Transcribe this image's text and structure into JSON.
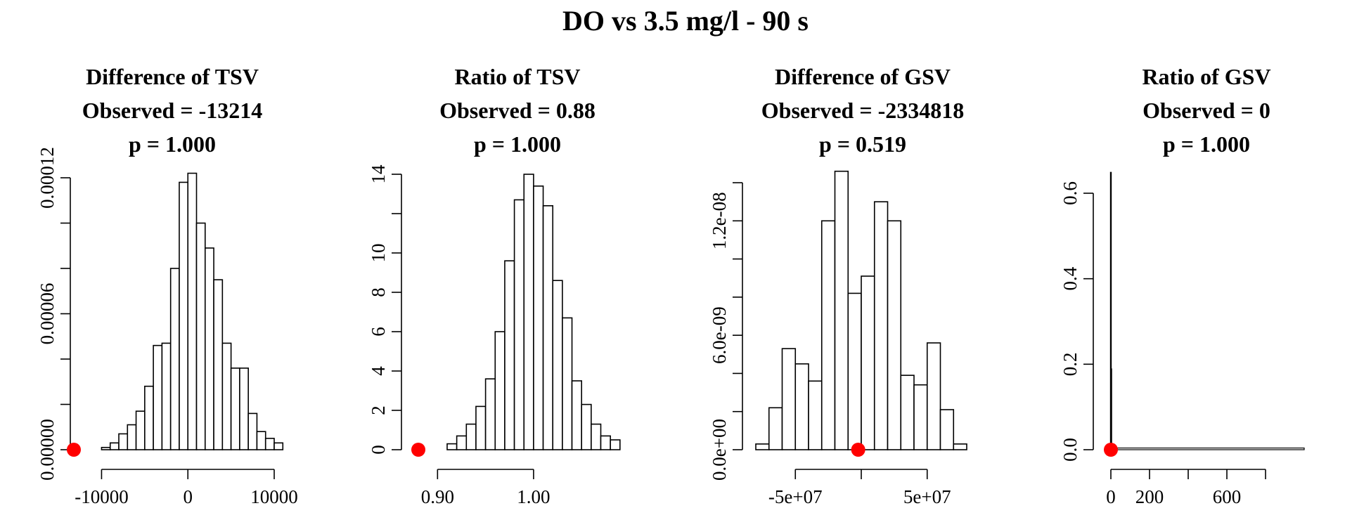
{
  "figure": {
    "title": "DO vs 3.5 mg/l - 90 s"
  },
  "colors": {
    "bar_fill": "#ffffff",
    "bar_stroke": "#000000",
    "observed_point": "#ff0000"
  },
  "chart_data": [
    {
      "type": "bar",
      "title_lines": [
        "Difference of TSV",
        "Observed = -13214",
        "p = 1.000"
      ],
      "xlabel": "",
      "ylabel": "",
      "xlim": [
        -13214,
        10000
      ],
      "ylim": [
        0,
        0.00012
      ],
      "x_ticks": [
        -10000,
        0,
        10000
      ],
      "x_tick_labels": [
        "-10000",
        "0",
        "10000"
      ],
      "y_ticks": [
        0,
        6e-05,
        0.00012
      ],
      "y_tick_labels": [
        "0.00000",
        "0.00006",
        "0.00012"
      ],
      "y_minor_ticks": [
        2e-05,
        4e-05,
        8e-05,
        0.0001
      ],
      "bins": {
        "start": -10000,
        "width": 1000,
        "heights": [
          1e-06,
          3e-06,
          7e-06,
          1.1e-05,
          1.7e-05,
          2.8e-05,
          4.6e-05,
          4.7e-05,
          8e-05,
          0.000118,
          0.000122,
          0.0001,
          8.9e-05,
          7.5e-05,
          4.7e-05,
          3.6e-05,
          3.6e-05,
          1.6e-05,
          8e-06,
          5e-06,
          3e-06
        ]
      },
      "observed": {
        "x": -13214,
        "y": 0
      }
    },
    {
      "type": "bar",
      "title_lines": [
        "Ratio of TSV",
        "Observed = 0.88",
        "p = 1.000"
      ],
      "xlabel": "",
      "ylabel": "",
      "xlim": [
        0.88,
        1.085
      ],
      "ylim": [
        0,
        14
      ],
      "x_ticks": [
        0.9,
        1.0
      ],
      "x_tick_labels": [
        "0.90",
        "1.00"
      ],
      "y_ticks": [
        0,
        2,
        4,
        6,
        8,
        10,
        14
      ],
      "y_tick_labels": [
        "0",
        "2",
        "4",
        "6",
        "8",
        "10",
        "14"
      ],
      "y_minor_ticks": [
        12
      ],
      "bins": {
        "start": 0.91,
        "width": 0.01,
        "heights": [
          0.3,
          0.7,
          1.3,
          2.2,
          3.6,
          6.0,
          9.6,
          12.7,
          14.0,
          13.4,
          12.4,
          8.6,
          6.7,
          3.5,
          2.3,
          1.3,
          0.7,
          0.5
        ]
      },
      "observed": {
        "x": 0.88,
        "y": 0
      }
    },
    {
      "type": "bar",
      "title_lines": [
        "Difference of GSV",
        "Observed = -2334818",
        "p = 0.519"
      ],
      "xlabel": "",
      "ylabel": "",
      "xlim": [
        -80000000.0,
        80000000.0
      ],
      "ylim": [
        0,
        1.4e-08
      ],
      "x_ticks": [
        -50000000.0,
        50000000.0
      ],
      "x_tick_labels": [
        "-5e+07",
        "5e+07"
      ],
      "x_axis_ticks": [
        -50000000.0,
        0,
        50000000.0
      ],
      "y_ticks": [
        0,
        6e-09,
        1.2e-08
      ],
      "y_tick_labels": [
        "0.0e+00",
        "6.0e-09",
        "1.2e-08"
      ],
      "y_minor_ticks": [
        2e-09,
        4e-09,
        8e-09,
        1e-08,
        1.4e-08
      ],
      "bins": {
        "start": -80000000.0,
        "width": 10000000.0,
        "heights": [
          3e-10,
          2.2e-09,
          5.3e-09,
          4.5e-09,
          3.6e-09,
          1.2e-08,
          1.46e-08,
          8.2e-09,
          9.1e-09,
          1.3e-08,
          1.2e-08,
          3.9e-09,
          3.4e-09,
          5.6e-09,
          2.1e-09,
          3e-10
        ]
      },
      "observed": {
        "x": -2334818,
        "y": 0
      }
    },
    {
      "type": "bar",
      "title_lines": [
        "Ratio of GSV",
        "Observed = 0",
        "p = 1.000"
      ],
      "xlabel": "",
      "ylabel": "",
      "xlim": [
        0,
        1000
      ],
      "ylim": [
        0,
        0.6
      ],
      "x_ticks": [
        0,
        200,
        600
      ],
      "x_tick_labels": [
        "0",
        "200",
        "600"
      ],
      "x_axis_ticks": [
        0,
        200,
        400,
        600,
        800
      ],
      "y_ticks": [
        0,
        0.2,
        0.4,
        0.6
      ],
      "y_tick_labels": [
        "0.0",
        "0.2",
        "0.4",
        "0.6"
      ],
      "spikes": [
        {
          "x": 0,
          "y": 0.65
        },
        {
          "x": 2,
          "y": 0.19
        }
      ],
      "noise_range": [
        0,
        1000
      ],
      "noise_height": 0.004,
      "observed": {
        "x": 0,
        "y": 0
      }
    }
  ]
}
